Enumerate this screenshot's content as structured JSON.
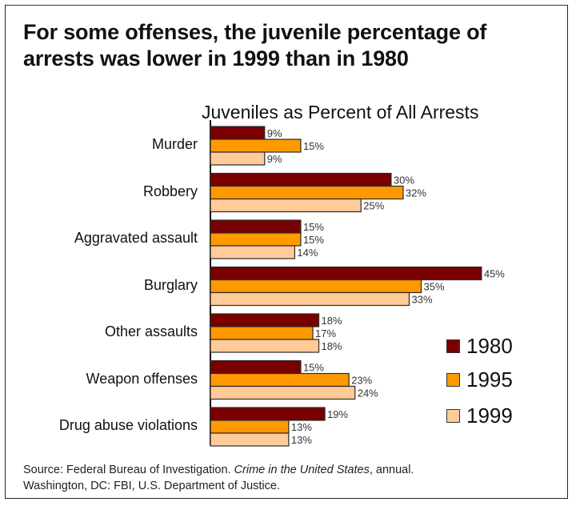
{
  "headline": {
    "line1": "For some offenses, the juvenile percentage of",
    "line2": "arrests was lower in 1999 than in 1980"
  },
  "source": {
    "prefix": "Source: Federal Bureau of Investigation.",
    "italic": "Crime in the United States",
    "suffix": ", annual.",
    "line2": "Washington, DC: FBI, U.S. Department of Justice."
  },
  "chart_data": {
    "type": "bar",
    "orientation": "horizontal",
    "title": "Juveniles as Percent of All Arrests",
    "xlabel": "",
    "ylabel": "",
    "xlim": [
      0,
      50
    ],
    "grid": false,
    "legend_position": "right",
    "categories": [
      "Murder",
      "Robbery",
      "Aggravated assault",
      "Burglary",
      "Other assaults",
      "Weapon offenses",
      "Drug abuse violations"
    ],
    "series": [
      {
        "name": "1980",
        "color": "#7a0000",
        "values": [
          9,
          30,
          15,
          45,
          18,
          15,
          19
        ]
      },
      {
        "name": "1995",
        "color": "#ff9900",
        "values": [
          15,
          32,
          15,
          35,
          17,
          23,
          13
        ]
      },
      {
        "name": "1999",
        "color": "#ffcc99",
        "values": [
          9,
          25,
          14,
          33,
          18,
          24,
          13
        ]
      }
    ],
    "value_suffix": "%"
  }
}
